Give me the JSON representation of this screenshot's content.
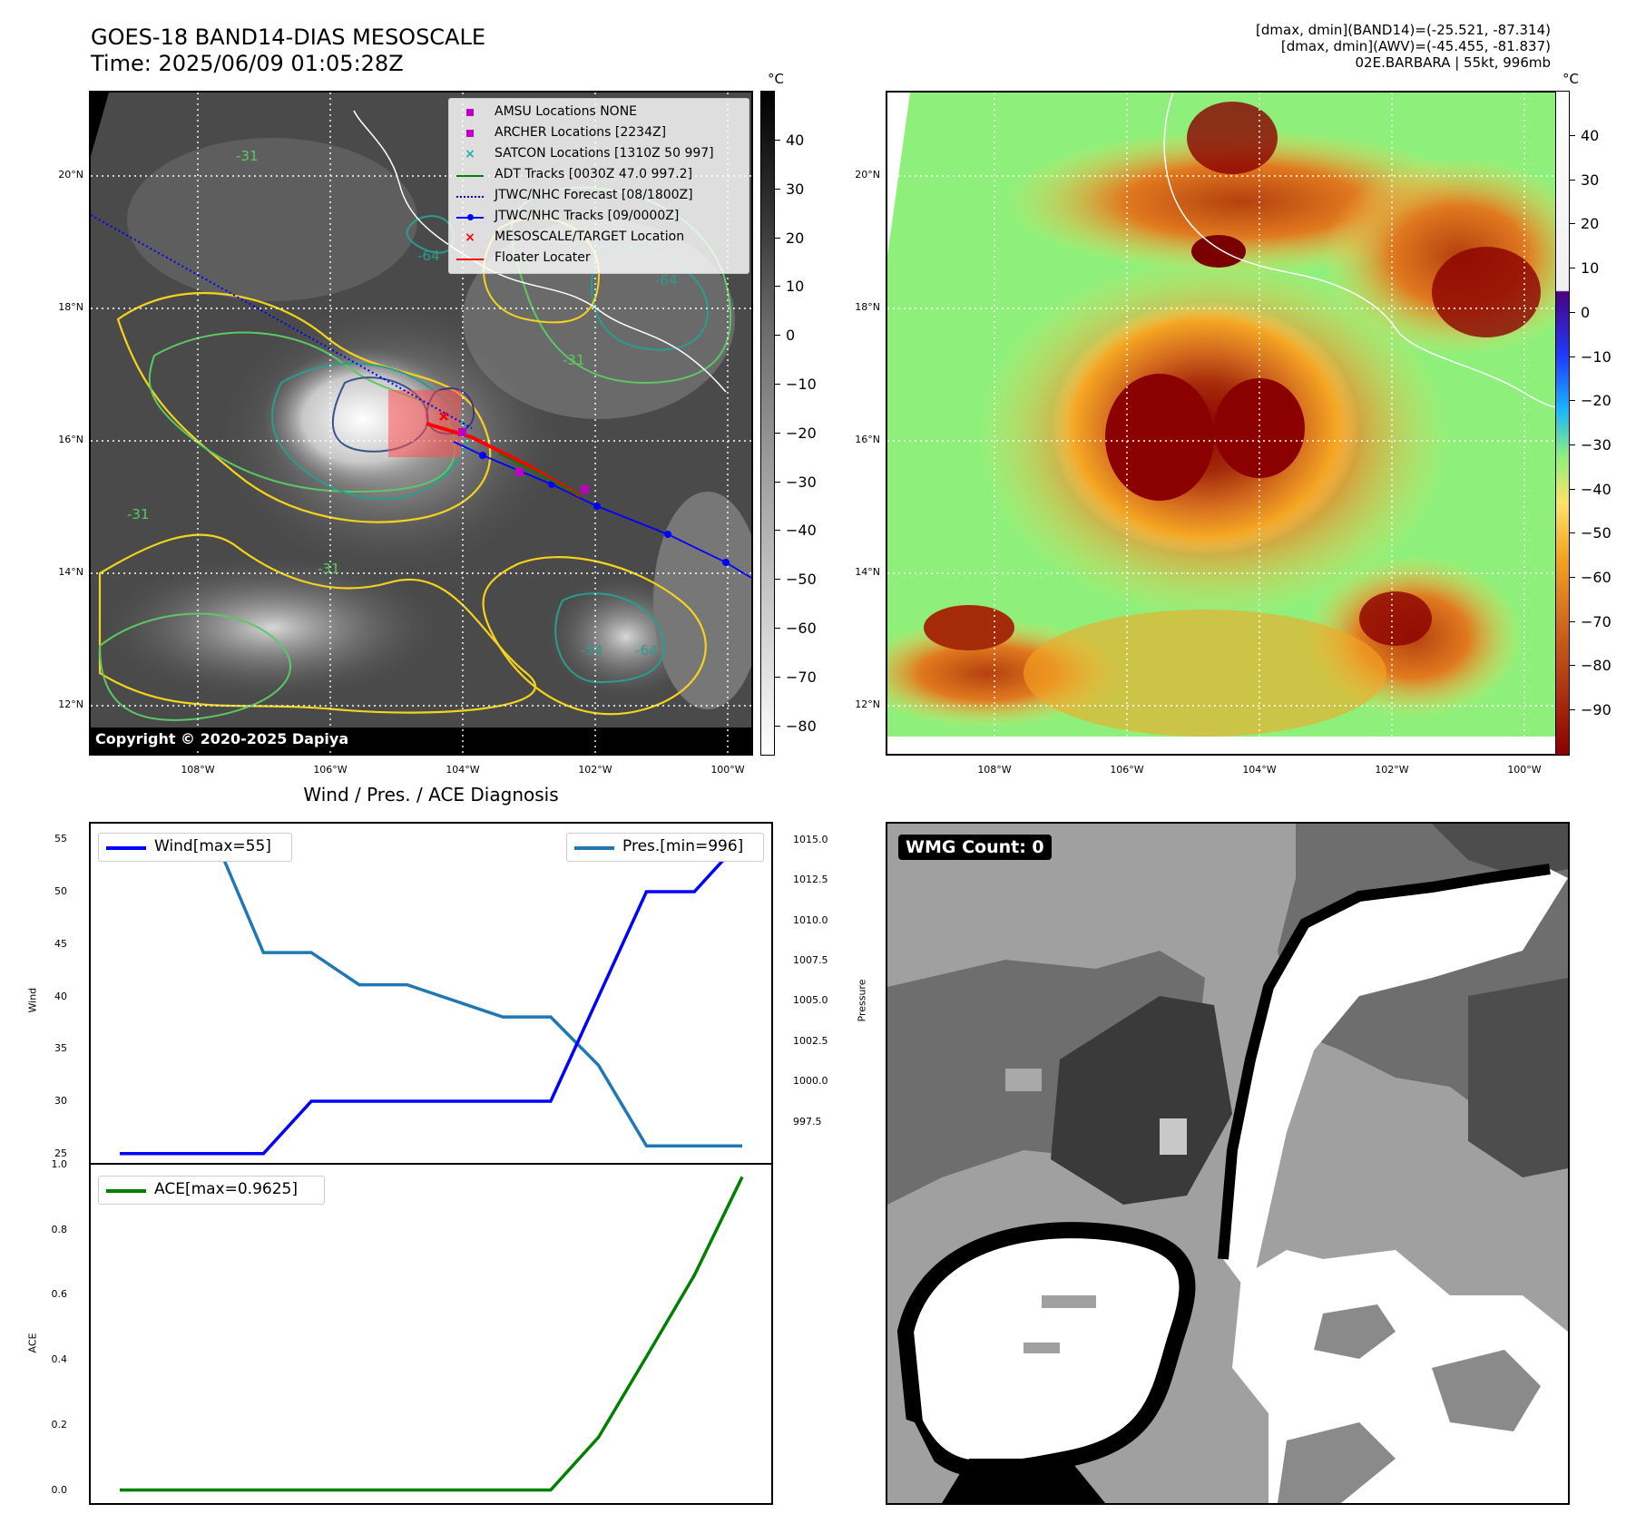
{
  "header": {
    "title_line1": "GOES-18 BAND14-DIAS MESOSCALE",
    "title_line2": "Time: 2025/06/09 01:05:28Z",
    "stats_line1": "[dmax, dmin](BAND14)=(-25.521, -87.314)",
    "stats_line2": "[dmax, dmin](AWV)=(-45.455, -81.837)",
    "stats_line3": "02E.BARBARA | 55kt, 996mb"
  },
  "map_axes": {
    "lat_labels": [
      "20°N",
      "18°N",
      "16°N",
      "14°N",
      "12°N"
    ],
    "lon_labels": [
      "108°W",
      "106°W",
      "104°W",
      "102°W",
      "100°W"
    ]
  },
  "ir_panel": {
    "copyright": "Copyright © 2020-2025 Dapiya",
    "colorbar_unit": "°C",
    "colorbar_ticks": [
      "40",
      "30",
      "20",
      "10",
      "0",
      "−10",
      "−20",
      "−30",
      "−40",
      "−50",
      "−60",
      "−70",
      "−80"
    ],
    "contour_labels": [
      "-31",
      "-64",
      "-54",
      "-31",
      "-64",
      "-31",
      "-31",
      "-64"
    ],
    "legend": [
      {
        "label": "AMSU Locations NONE",
        "symbol": "square",
        "color": "#c000c0"
      },
      {
        "label": "ARCHER Locations [2234Z]",
        "symbol": "square",
        "color": "#c000c0"
      },
      {
        "label": "SATCON Locations [1310Z 50 997]",
        "symbol": "x",
        "color": "#20b2aa"
      },
      {
        "label": "ADT Tracks [0030Z 47.0 997.2]",
        "symbol": "line",
        "color": "#008000"
      },
      {
        "label": "JTWC/NHC Forecast [08/1800Z]",
        "symbol": "dotted",
        "color": "#0000ff"
      },
      {
        "label": "JTWC/NHC Tracks [09/0000Z]",
        "symbol": "line-dot",
        "color": "#0000ff"
      },
      {
        "label": "MESOSCALE/TARGET Location",
        "symbol": "x",
        "color": "#ff0000"
      },
      {
        "label": "Floater Locater",
        "symbol": "line",
        "color": "#ff0000"
      }
    ]
  },
  "awv_panel": {
    "colorbar_unit": "°C",
    "colorbar_ticks": [
      "40",
      "30",
      "20",
      "10",
      "0",
      "−10",
      "−20",
      "−30",
      "−40",
      "−50",
      "−60",
      "−70",
      "−80",
      "−90"
    ]
  },
  "wmg_panel": {
    "badge": "WMG Count: 0"
  },
  "chart_data": [
    {
      "type": "line",
      "title": "Wind / Pres. / ACE Diagnosis",
      "x": [
        0,
        1,
        2,
        3,
        4,
        5,
        6,
        7,
        8,
        9,
        10,
        11,
        12,
        13
      ],
      "ylabel": "Wind",
      "ylabel_right": "Pressure",
      "ylim": [
        24.2,
        56.5
      ],
      "ylim_right": [
        995.0,
        1016.0
      ],
      "yticks": [
        25,
        30,
        35,
        40,
        45,
        50,
        55
      ],
      "yticks_right": [
        "997.5",
        "1000.0",
        "1002.5",
        "1005.0",
        "1007.5",
        "1010.0",
        "1012.5",
        "1015.0"
      ],
      "series": [
        {
          "name": "Wind[max=55]",
          "axis": "left",
          "color": "#0000ff",
          "values": [
            25,
            25,
            25,
            25,
            30,
            30,
            30,
            30,
            30,
            30,
            40,
            50,
            50,
            55
          ]
        },
        {
          "name": "Pres.[min=996]",
          "axis": "right",
          "color": "#1f77b4",
          "values": [
            1015,
            1015,
            1015,
            1008,
            1008,
            1006,
            1006,
            1005,
            1004,
            1004,
            1001,
            996,
            996,
            996
          ]
        }
      ]
    },
    {
      "type": "line",
      "x": [
        0,
        1,
        2,
        3,
        4,
        5,
        6,
        7,
        8,
        9,
        10,
        11,
        12,
        13
      ],
      "ylabel": "ACE",
      "ylim": [
        -0.04,
        1.0
      ],
      "yticks": [
        "0.0",
        "0.2",
        "0.4",
        "0.6",
        "0.8",
        "1.0"
      ],
      "series": [
        {
          "name": "ACE[max=0.9625]",
          "axis": "left",
          "color": "#008000",
          "values": [
            0,
            0,
            0,
            0,
            0,
            0,
            0,
            0,
            0,
            0,
            0.1625,
            0.41,
            0.66,
            0.9625
          ]
        }
      ]
    }
  ]
}
